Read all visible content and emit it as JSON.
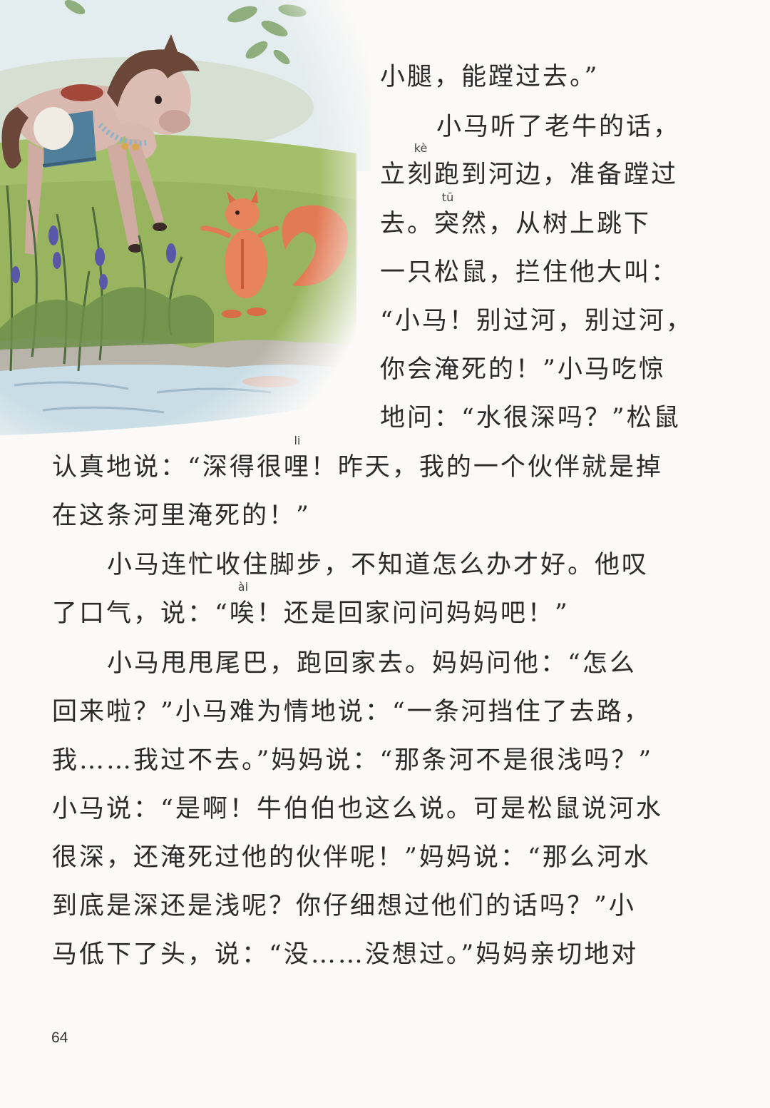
{
  "illustration": {
    "label": "Illustration: a little horse and a squirrel by the river",
    "colors": {
      "sky": "#e3ecef",
      "grass": "#a4bf6a",
      "horse": "#d9b8b0",
      "mane": "#6a4738",
      "squirrel": "#e27a55",
      "water": "#c9dde6",
      "blanket": "#4f7f9a",
      "flowers": "#5a57a8"
    }
  },
  "page_text": {
    "l1": "小腿，能蹚过去。”",
    "l2": "小马听了老牛的话，",
    "l3_a": "立",
    "l3_ruby": "刻",
    "l3_py": "kè",
    "l3_b": "跑到河边，准备蹚过",
    "l4_a": "去。",
    "l4_ruby": "突",
    "l4_py": "tū",
    "l4_b": "然，从树上跳下",
    "l5": "一只松鼠，拦住他大叫：",
    "l6": "“小马！别过河，别过河，",
    "l7": "你会淹死的！”小马吃惊",
    "l8": "地问：“水很深吗？”松鼠",
    "l9_a": "认真地说：“深得很",
    "l9_ruby": "哩",
    "l9_py": "li",
    "l9_b": "！昨天，我的一个伙伴就是掉",
    "l10": "在这条河里淹死的！”",
    "l11": "小马连忙收住脚步，不知道怎么办才好。他叹",
    "l12_a": "了口气，说：“",
    "l12_ruby": "唉",
    "l12_py": "ài",
    "l12_b": "！还是回家问问妈妈吧！”",
    "l13": "小马甩甩尾巴，跑回家去。妈妈问他：“怎么",
    "l14": "回来啦？”小马难为情地说：“一条河挡住了去路，",
    "l15": "我……我过不去。”妈妈说：“那条河不是很浅吗？”",
    "l16": "小马说：“是啊！牛伯伯也这么说。可是松鼠说河水",
    "l17": "很深，还淹死过他的伙伴呢！”妈妈说：“那么河水",
    "l18": "到底是深还是浅呢？你仔细想过他们的话吗？”小",
    "l19": "马低下了头，说：“没……没想过。”妈妈亲切地对"
  },
  "page_number": "64"
}
